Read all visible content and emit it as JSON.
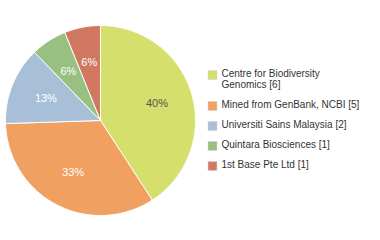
{
  "chart_data": {
    "type": "pie",
    "categories": [
      "Centre for Biodiversity\nGenomics [6]",
      "Mined from GenBank, NCBI [5]",
      "Universiti Sains Malaysia [2]",
      "Quintara Biosciences [1]",
      "1st Base Pte Ltd [1]"
    ],
    "values": [
      40,
      33,
      13,
      6,
      6
    ],
    "value_labels": [
      "40%",
      "33%",
      "13%",
      "6%",
      "6%"
    ],
    "colors": [
      "#d4e06b",
      "#f0a060",
      "#a8bfd8",
      "#98c080",
      "#d07860"
    ],
    "data_labels": true,
    "legend": "right"
  }
}
